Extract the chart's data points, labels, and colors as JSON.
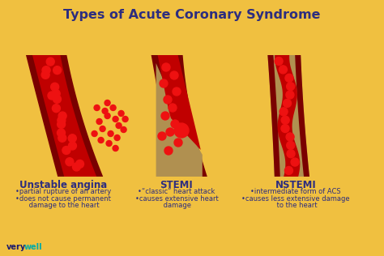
{
  "title": "Types of Acute Coronary Syndrome",
  "title_color": "#2d2d7f",
  "title_fontsize": 11.5,
  "background_color": "#f0c040",
  "artery_dark_red": "#7a0000",
  "artery_red": "#c00000",
  "blood_red": "#ee1111",
  "plaque_color": "#b09050",
  "text_color": "#2d2d7f",
  "labels": [
    "Unstable angina",
    "STEMI",
    "NSTEMI"
  ],
  "label_fontsize": 8.5,
  "desc1": [
    "•partial rupture of an artery",
    "•does not cause permanent",
    " damage to the heart"
  ],
  "desc2": [
    "•“classic” heart attack",
    "•causes extensive heart",
    " damage"
  ],
  "desc3": [
    "•intermediate form of ACS",
    "•causes less extensive damage",
    " to the heart"
  ],
  "verywell_color": "#1a1a6e",
  "well_color": "#00aaaa",
  "desc_fontsize": 6.0
}
